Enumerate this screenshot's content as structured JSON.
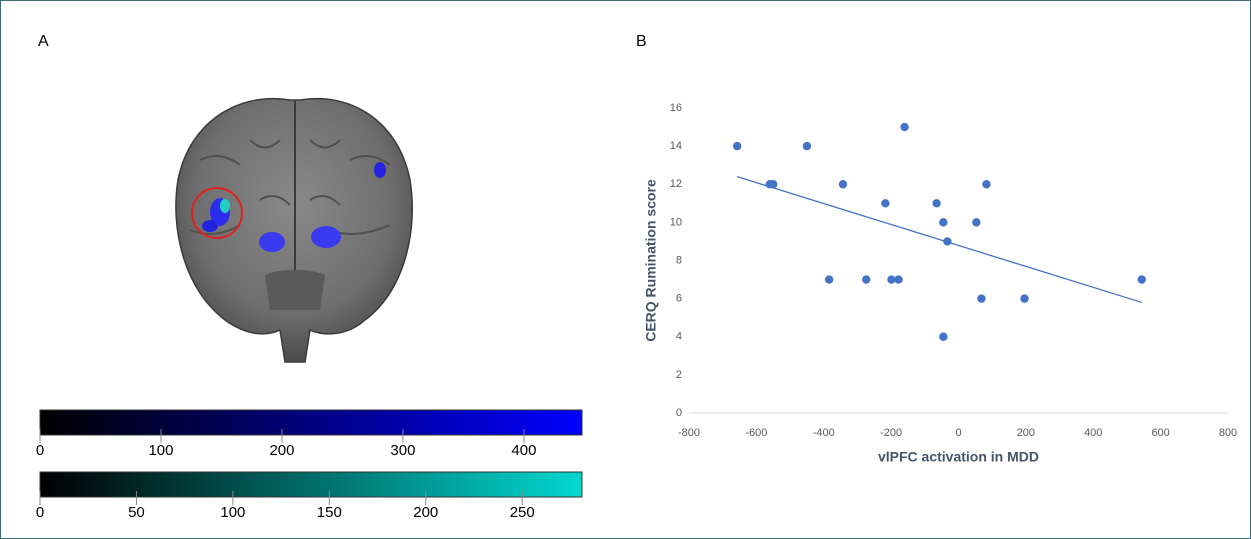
{
  "panel_labels": [
    "A",
    "B"
  ],
  "chart_data": [
    {
      "type": "colorbar",
      "colors": [
        "#000000",
        "#0000ff"
      ],
      "xlim": [
        0,
        448
      ],
      "xticks": [
        0,
        100,
        200,
        300,
        400
      ]
    },
    {
      "type": "colorbar",
      "colors": [
        "#000000",
        "#00d8d0"
      ],
      "xlim": [
        0,
        281
      ],
      "xticks": [
        0,
        50,
        100,
        150,
        200,
        250
      ]
    },
    {
      "type": "scatter",
      "xlabel": "vlPFC activation in MDD",
      "ylabel": "CERQ Rumination score",
      "color": "#4472c4",
      "x": [
        -657,
        -560,
        -550,
        -450,
        -343,
        -384,
        -274,
        -217,
        -199,
        -178,
        -160,
        -65,
        -45,
        -33,
        -45,
        53,
        68,
        83,
        196,
        544
      ],
      "y": [
        14,
        12,
        12,
        14,
        12,
        7,
        7,
        11,
        7,
        7,
        15,
        11,
        10,
        9,
        4,
        10,
        6,
        12,
        6,
        7
      ],
      "trendline": {
        "x": [
          -657,
          544
        ],
        "y": [
          12.4,
          5.8
        ]
      },
      "xlim": [
        -800,
        800
      ],
      "xticks": [
        -800,
        -600,
        -400,
        -200,
        0,
        200,
        400,
        600,
        800
      ],
      "ylim": [
        0,
        16
      ],
      "yticks": [
        0,
        2,
        4,
        6,
        8,
        10,
        12,
        14,
        16
      ]
    }
  ]
}
